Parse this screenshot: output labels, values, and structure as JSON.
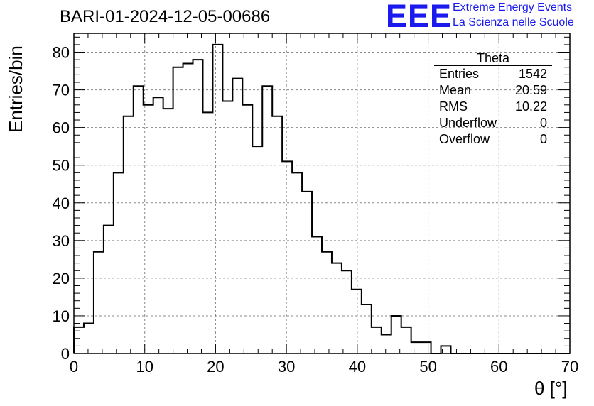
{
  "title": "BARI-01-2024-12-05-00686",
  "logo": {
    "text": "EEE",
    "line1": "Extreme Energy Events",
    "line2": "La Scienza nelle Scuole",
    "color": "#1a1aee"
  },
  "stats": {
    "title": "Theta",
    "rows": [
      {
        "label": "Entries",
        "value": "1542"
      },
      {
        "label": "Mean",
        "value": "20.59"
      },
      {
        "label": "RMS",
        "value": "10.22"
      },
      {
        "label": "Underflow",
        "value": "0"
      },
      {
        "label": "Overflow",
        "value": "0"
      }
    ]
  },
  "chart_data": {
    "type": "bar",
    "title": "BARI-01-2024-12-05-00686",
    "xlabel": "θ [°]",
    "ylabel": "Entries/bin",
    "xlim": [
      0,
      70
    ],
    "ylim": [
      0,
      85
    ],
    "bin_width": 1.4,
    "x_ticks": [
      0,
      10,
      20,
      30,
      40,
      50,
      60,
      70
    ],
    "y_ticks": [
      0,
      10,
      20,
      30,
      40,
      50,
      60,
      70,
      80
    ],
    "grid": true,
    "values": [
      7,
      8,
      27,
      34,
      48,
      63,
      71,
      66,
      68,
      65,
      76,
      77,
      78,
      64,
      82,
      67,
      73,
      66,
      55,
      71,
      63,
      51,
      48,
      43,
      31,
      27,
      24,
      22,
      17,
      13,
      7,
      5,
      10,
      7,
      3,
      3,
      0,
      2,
      0,
      0,
      0,
      0,
      0,
      0,
      0,
      0,
      0,
      0,
      0,
      0
    ]
  }
}
